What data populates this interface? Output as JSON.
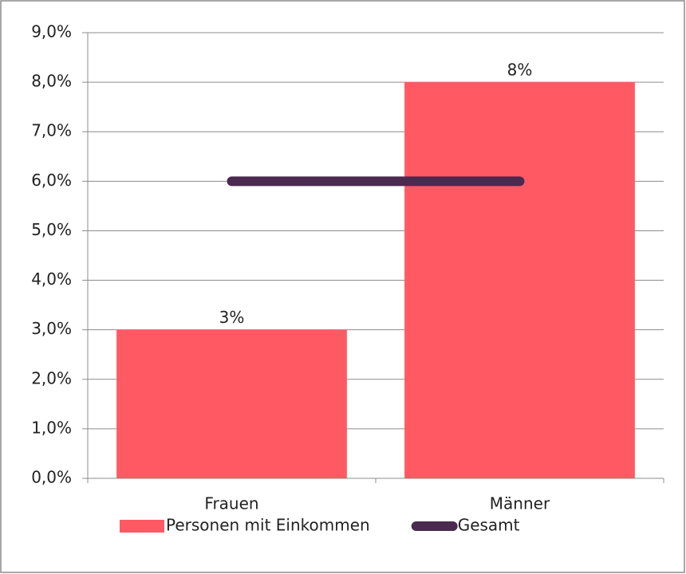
{
  "chart_data": {
    "type": "bar",
    "categories": [
      "Frauen",
      "Männer"
    ],
    "series": [
      {
        "name": "Personen mit Einkommen",
        "type": "bar",
        "color": "#ff5a64",
        "values": [
          3,
          8
        ],
        "value_labels": [
          "3%",
          "8%"
        ]
      },
      {
        "name": "Gesamt",
        "type": "line",
        "color": "#4a2a4f",
        "values": [
          6,
          6
        ]
      }
    ],
    "ylim": [
      0,
      9
    ],
    "yticks": [
      {
        "value": 0,
        "label": "0,0%"
      },
      {
        "value": 1,
        "label": "1,0%"
      },
      {
        "value": 2,
        "label": "2,0%"
      },
      {
        "value": 3,
        "label": "3,0%"
      },
      {
        "value": 4,
        "label": "4,0%"
      },
      {
        "value": 5,
        "label": "5,0%"
      },
      {
        "value": 6,
        "label": "6,0%"
      },
      {
        "value": 7,
        "label": "7,0%"
      },
      {
        "value": 8,
        "label": "8,0%"
      },
      {
        "value": 9,
        "label": "9,0%"
      }
    ],
    "grid": true,
    "legend": "bottom"
  }
}
